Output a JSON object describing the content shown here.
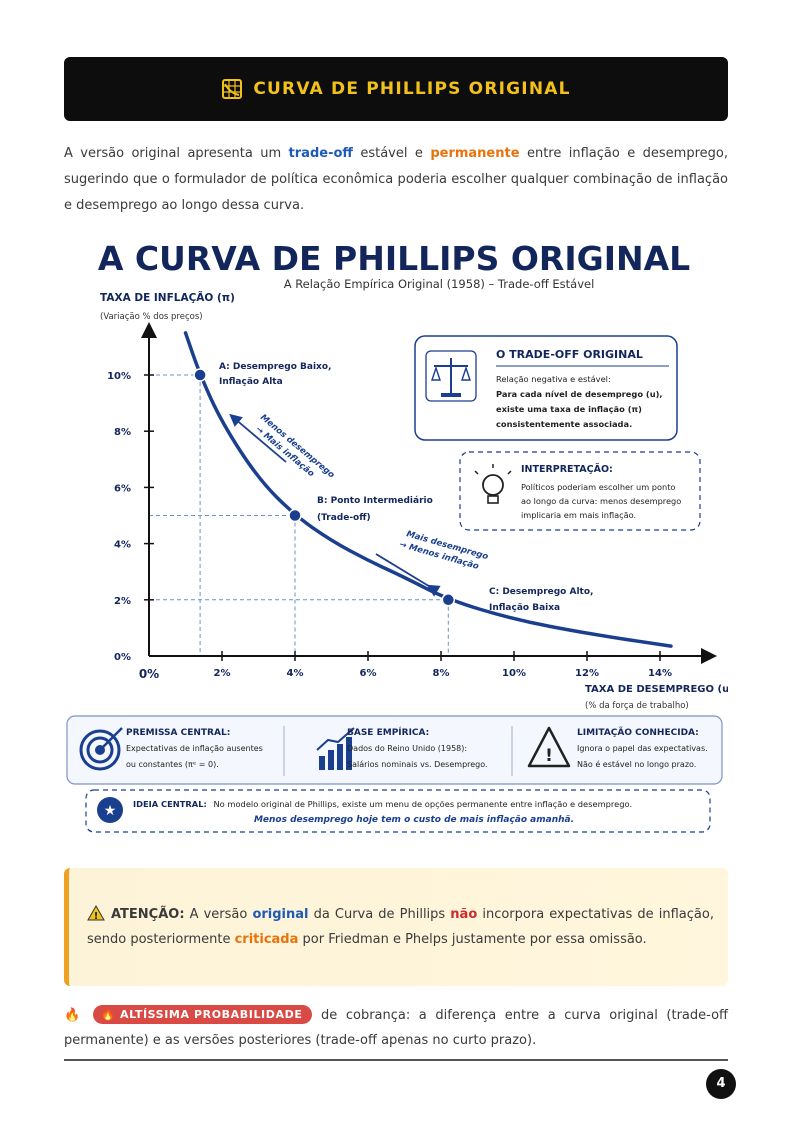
{
  "header": {
    "icon": "chart-icon",
    "title": "CURVA DE PHILLIPS ORIGINAL"
  },
  "intro": {
    "p1": "A versão original apresenta um ",
    "k1": "trade-off",
    "p2": " estável e ",
    "k2": "permanente",
    "p3": " entre inflação e desemprego, sugerindo que o formulador de política econômica poderia escolher qualquer combinação de inflação e desemprego ao longo dessa curva."
  },
  "figure": {
    "title": "A CURVA DE PHILLIPS ORIGINAL",
    "subtitle": "A Relação Empírica Original (1958) – Trade-off Estável",
    "y_title": "TAXA DE INFLAÇÃO (π)",
    "y_sub": "(Variação % dos preços)",
    "x_title": "TAXA DE DESEMPREGO (u)",
    "x_sub": "(% da força de trabalho)",
    "points": [
      {
        "l1": "A: Desemprego Baixo,",
        "l2": "Inflação Alta"
      },
      {
        "l1": "B: Ponto Intermediário",
        "l2": "(Trade-off)"
      },
      {
        "l1": "C: Desemprego Alto,",
        "l2": "Inflação Baixa"
      }
    ],
    "arrow1": {
      "l1": "Menos desemprego",
      "l2": "→ Mais inflação"
    },
    "arrow2": {
      "l1": "Mais desemprego",
      "l2": "→ Menos inflação"
    },
    "box1": {
      "icon": "scale-icon",
      "title": "O TRADE-OFF ORIGINAL",
      "l1": "Relação negativa e estável:",
      "l2": "Para cada nível de desemprego (u),",
      "l3": "existe uma taxa de inflação (π)",
      "l4": "consistentemente associada."
    },
    "box2": {
      "icon": "lightbulb-icon",
      "title": "INTERPRETAÇÃO:",
      "l1": "Políticos poderiam escolher um ponto",
      "l2": "ao longo da curva: menos desemprego",
      "l3": "implicaria em mais inflação."
    },
    "premises": [
      {
        "icon": "target-icon",
        "title": "PREMISSA CENTRAL:",
        "l1": "Expectativas de inflação ausentes",
        "l2": "ou constantes (πᵉ = 0)."
      },
      {
        "icon": "bar-chart-icon",
        "title": "BASE EMPÍRICA:",
        "l1": "Dados do Reino Unido (1958):",
        "l2": "Salários nominais vs. Desemprego."
      },
      {
        "icon": "warning-icon",
        "title": "LIMITAÇÃO CONHECIDA:",
        "l1": "Ignora o papel das expectativas.",
        "l2": "Não é estável no longo prazo."
      }
    ],
    "idea": {
      "icon": "star-icon",
      "label": "IDEIA CENTRAL:",
      "l1": "No modelo original de Phillips, existe um menu de opções permanente entre inflação e desemprego.",
      "l2": "Menos desemprego hoje tem o custo de mais inflação amanhã."
    }
  },
  "chart_data": {
    "type": "line",
    "title": "A CURVA DE PHILLIPS ORIGINAL",
    "xlabel": "TAXA DE DESEMPREGO (u)",
    "ylabel": "TAXA DE INFLAÇÃO (π)",
    "x_ticks": [
      "0%",
      "2%",
      "4%",
      "6%",
      "8%",
      "10%",
      "12%",
      "14%"
    ],
    "y_ticks": [
      "0%",
      "2%",
      "4%",
      "6%",
      "8%",
      "10%"
    ],
    "xlim": [
      0,
      15
    ],
    "ylim": [
      0,
      11.5
    ],
    "series": [
      {
        "x": [
          1.0,
          1.4,
          2.0,
          3.0,
          4.0,
          5.0,
          6.0,
          7.0,
          8.2,
          10.0,
          12.0,
          14.3
        ],
        "y": [
          11.5,
          10.0,
          8.3,
          6.3,
          5.0,
          4.1,
          3.4,
          2.8,
          2.0,
          1.3,
          0.8,
          0.35
        ]
      }
    ],
    "points": [
      {
        "name": "A",
        "x": 1.4,
        "y": 10
      },
      {
        "name": "B",
        "x": 4.0,
        "y": 5
      },
      {
        "name": "C",
        "x": 8.2,
        "y": 2
      }
    ]
  },
  "attention": {
    "icon": "warning-icon",
    "label": "ATENÇÃO:",
    "t1": " A versão ",
    "k1": "original",
    "t2": " da Curva de Phillips ",
    "k2": "não",
    "t3": " incorpora expectativas de inflação, sendo posteriormente ",
    "k3": "criticada",
    "t4": " por Friedman e Phelps justamente por essa omissão."
  },
  "probability": {
    "icon": "fire-icon",
    "badge": "ALTÍSSIMA PROBABILIDADE",
    "text": " de cobrança: a diferença entre a curva original (trade-off permanente) e as versões posteriores (trade-off apenas no curto prazo)."
  },
  "page_number": "4",
  "colors": {
    "accent": "#f2c11a",
    "navy": "#1a3f8f",
    "blue": "#1e5bb8",
    "orange": "#e8730c",
    "red": "#cc2b2b"
  }
}
